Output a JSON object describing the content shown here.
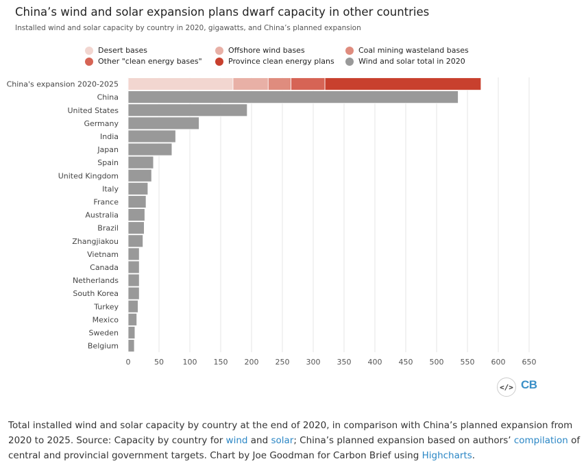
{
  "header": {
    "title": "China’s wind and solar expansion plans dwarf capacity in other countries",
    "subtitle": "Installed wind and solar capacity by country in 2020, gigawatts, and China’s planned expansion"
  },
  "legend": [
    {
      "label": "Desert bases",
      "color": "#f2d6d0"
    },
    {
      "label": "Offshore wind bases",
      "color": "#e8b0a6"
    },
    {
      "label": "Coal mining wasteland bases",
      "color": "#df8c7e"
    },
    {
      "label": "Other \"clean energy bases\"",
      "color": "#d66455"
    },
    {
      "label": "Province clean energy plans",
      "color": "#c8402e"
    },
    {
      "label": "Wind and solar total in 2020",
      "color": "#999999"
    }
  ],
  "chart_data": {
    "type": "bar",
    "orientation": "horizontal",
    "stacked": true,
    "categories": [
      "China's expansion 2020-2025",
      "China",
      "United States",
      "Germany",
      "India",
      "Japan",
      "Spain",
      "United Kingdom",
      "Italy",
      "France",
      "Australia",
      "Brazil",
      "Zhangjiakou",
      "Vietnam",
      "Canada",
      "Netherlands",
      "South Korea",
      "Turkey",
      "Mexico",
      "Sweden",
      "Belgium"
    ],
    "series": [
      {
        "name": "Desert bases",
        "color": "#f2d6d0",
        "values": [
          170,
          0,
          0,
          0,
          0,
          0,
          0,
          0,
          0,
          0,
          0,
          0,
          0,
          0,
          0,
          0,
          0,
          0,
          0,
          0,
          0
        ]
      },
      {
        "name": "Offshore wind bases",
        "color": "#e8b0a6",
        "values": [
          57,
          0,
          0,
          0,
          0,
          0,
          0,
          0,
          0,
          0,
          0,
          0,
          0,
          0,
          0,
          0,
          0,
          0,
          0,
          0,
          0
        ]
      },
      {
        "name": "Coal mining wasteland bases",
        "color": "#df8c7e",
        "values": [
          37,
          0,
          0,
          0,
          0,
          0,
          0,
          0,
          0,
          0,
          0,
          0,
          0,
          0,
          0,
          0,
          0,
          0,
          0,
          0,
          0
        ]
      },
      {
        "name": "Other \"clean energy bases\"",
        "color": "#d66455",
        "values": [
          55,
          0,
          0,
          0,
          0,
          0,
          0,
          0,
          0,
          0,
          0,
          0,
          0,
          0,
          0,
          0,
          0,
          0,
          0,
          0,
          0
        ]
      },
      {
        "name": "Province clean energy plans",
        "color": "#c8402e",
        "values": [
          253,
          0,
          0,
          0,
          0,
          0,
          0,
          0,
          0,
          0,
          0,
          0,
          0,
          0,
          0,
          0,
          0,
          0,
          0,
          0,
          0
        ]
      },
      {
        "name": "Wind and solar total in 2020",
        "color": "#999999",
        "values": [
          0,
          535,
          193,
          115,
          77,
          71,
          41,
          38,
          32,
          29,
          27,
          26,
          24,
          18,
          18,
          18,
          18,
          16,
          14,
          11,
          10
        ]
      }
    ],
    "xlim": [
      0,
      650
    ],
    "xticks": [
      0,
      50,
      100,
      150,
      200,
      250,
      300,
      350,
      400,
      450,
      500,
      550,
      600,
      650
    ],
    "grid": true,
    "legend_position": "top"
  },
  "footer": {
    "caption_parts": [
      {
        "text": "Total installed wind and solar capacity by country at the end of 2020, in comparison with China’s planned expansion from 2020 to 2025. Source: Capacity by country for "
      },
      {
        "text": "wind",
        "link": true
      },
      {
        "text": " and "
      },
      {
        "text": "solar",
        "link": true
      },
      {
        "text": "; China’s planned expansion based on authors’ "
      },
      {
        "text": "compilation",
        "link": true
      },
      {
        "text": " of central and provincial government targets. Chart by Joe Goodman for Carbon Brief using "
      },
      {
        "text": "Highcharts",
        "link": true
      },
      {
        "text": "."
      }
    ],
    "logo": "CB",
    "embed_icon": "code-embed-icon",
    "embed_glyph": "</>"
  }
}
